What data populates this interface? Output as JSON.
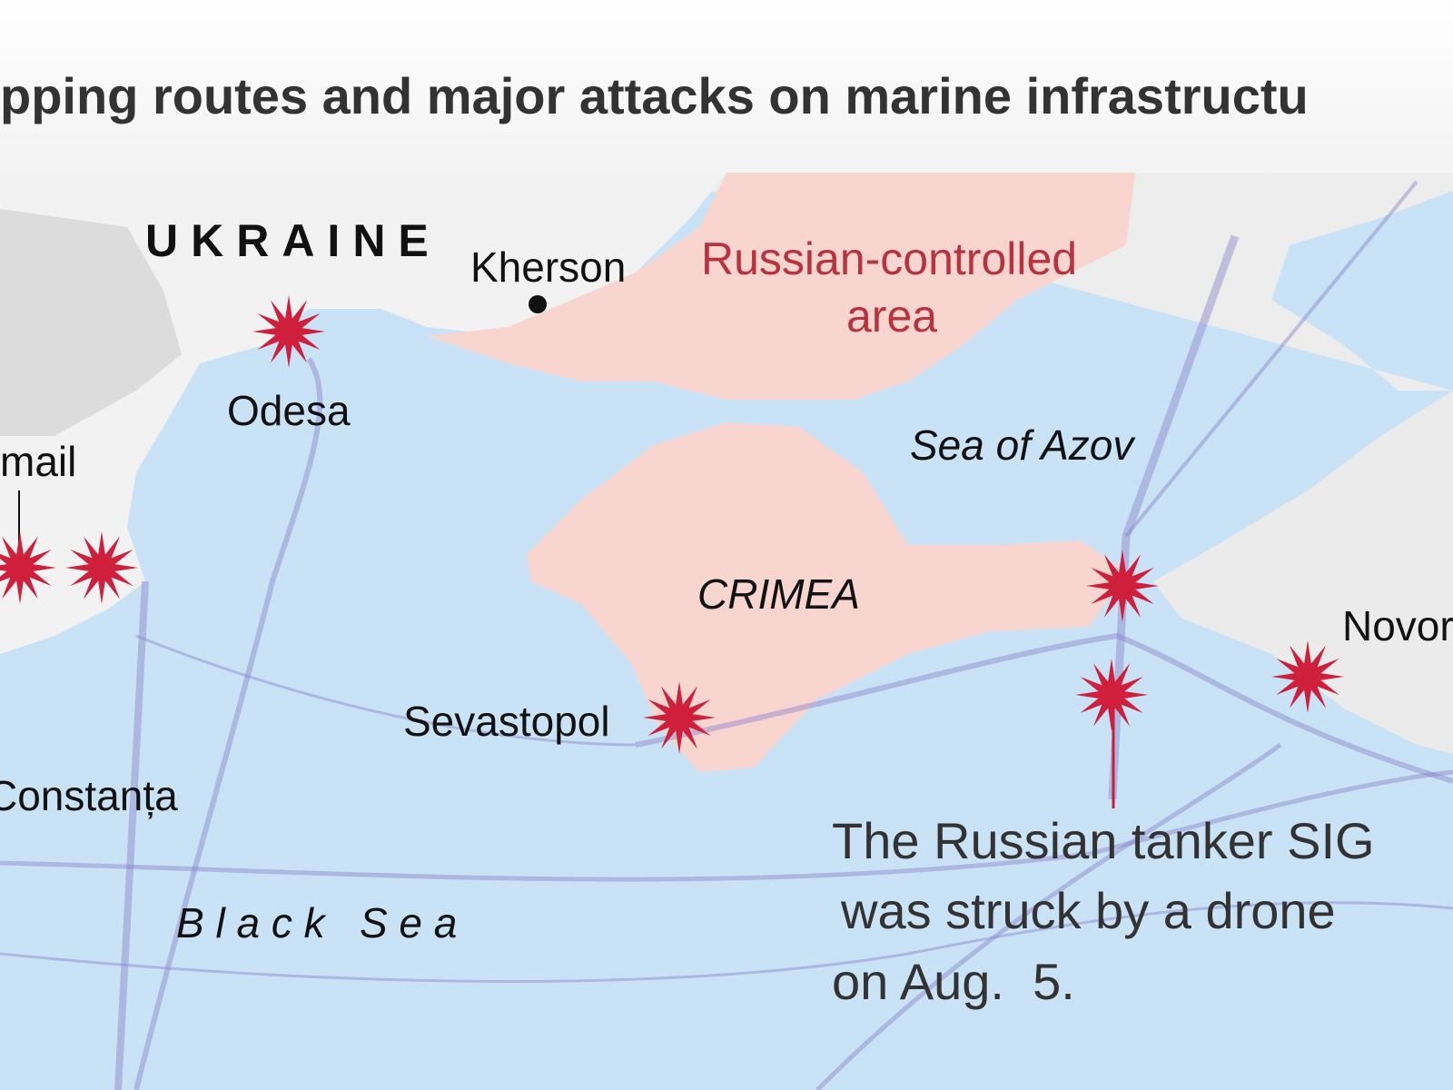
{
  "header": {
    "title": "pping routes and major attacks on marine infrastructu"
  },
  "labels": {
    "country": "UKRAINE",
    "kherson": "Kherson",
    "russian_area": [
      "Russian-controlled",
      "area"
    ],
    "odesa": "Odesa",
    "izmail": "mail",
    "sea_of_azov": "Sea of Azov",
    "crimea": "CRIMEA",
    "sevastopol": "Sevastopol",
    "novorossiysk": "Novor",
    "constanta": "Constanța",
    "black_sea": "B l a c k   S e a"
  },
  "annotation": {
    "lines": [
      "The Russian tanker SIG",
      "was struck by a drone",
      "on Aug.  5."
    ]
  }
}
